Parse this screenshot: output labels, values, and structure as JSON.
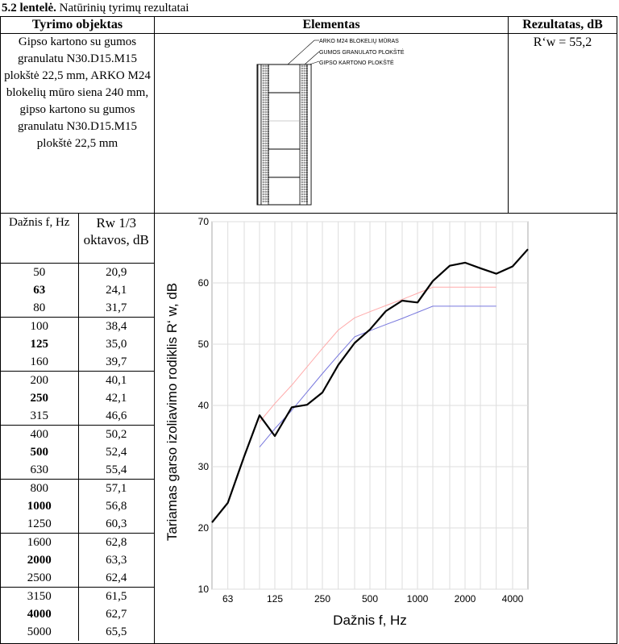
{
  "caption": {
    "bold": "5.2 lentelė.",
    "rest": " Natūrinių tyrimų rezultatai"
  },
  "headers": {
    "object": "Tyrimo objektas",
    "element": "Elementas",
    "result": "Rezultatas, dB"
  },
  "object_description": "Gipso kartono su gumos granulatu N30.D15.M15 plokštė 22,5 mm, ARKO M24 blokelių mūro siena 240 mm, gipso kartono su gumos granulatu N30.D15.M15 plokštė 22,5 mm",
  "result_value": "R‘w = 55,2",
  "diagram_labels": [
    "ARKO M24 BLOKELIŲ MŪRAS",
    "GUMOS GRANULATO PLOKŠTĖ",
    "GIPSO KARTONO PLOKŠTĖ"
  ],
  "freq_table": {
    "col_freq": "Dažnis f, Hz",
    "col_value": "Rw 1/3 oktavos, dB",
    "groups": [
      [
        {
          "f": "50",
          "v": "20,9",
          "bold": false
        },
        {
          "f": "63",
          "v": "24,1",
          "bold": true
        },
        {
          "f": "80",
          "v": "31,7",
          "bold": false
        }
      ],
      [
        {
          "f": "100",
          "v": "38,4",
          "bold": false
        },
        {
          "f": "125",
          "v": "35,0",
          "bold": true
        },
        {
          "f": "160",
          "v": "39,7",
          "bold": false
        }
      ],
      [
        {
          "f": "200",
          "v": "40,1",
          "bold": false
        },
        {
          "f": "250",
          "v": "42,1",
          "bold": true
        },
        {
          "f": "315",
          "v": "46,6",
          "bold": false
        }
      ],
      [
        {
          "f": "400",
          "v": "50,2",
          "bold": false
        },
        {
          "f": "500",
          "v": "52,4",
          "bold": true
        },
        {
          "f": "630",
          "v": "55,4",
          "bold": false
        }
      ],
      [
        {
          "f": "800",
          "v": "57,1",
          "bold": false
        },
        {
          "f": "1000",
          "v": "56,8",
          "bold": true
        },
        {
          "f": "1250",
          "v": "60,3",
          "bold": false
        }
      ],
      [
        {
          "f": "1600",
          "v": "62,8",
          "bold": false
        },
        {
          "f": "2000",
          "v": "63,3",
          "bold": true
        },
        {
          "f": "2500",
          "v": "62,4",
          "bold": false
        }
      ],
      [
        {
          "f": "3150",
          "v": "61,5",
          "bold": false
        },
        {
          "f": "4000",
          "v": "62,7",
          "bold": true
        },
        {
          "f": "5000",
          "v": "65,5",
          "bold": false
        }
      ]
    ]
  },
  "chart_data": {
    "type": "line",
    "xlabel": "Dažnis f, Hz",
    "ylabel": "Tariamas garso izoliavimo rodiklis R‘ w, dB",
    "x_scale": "log",
    "xlim": [
      50,
      5000
    ],
    "ylim": [
      10,
      70
    ],
    "xticks": [
      63,
      125,
      250,
      500,
      1000,
      2000,
      4000
    ],
    "xtick_labels": [
      "63",
      "125",
      "250",
      "500",
      "1000",
      "2000",
      "4000"
    ],
    "yticks": [
      10,
      20,
      30,
      40,
      50,
      60,
      70
    ],
    "grid": true,
    "series": [
      {
        "color": "#000000",
        "x": [
          50,
          63,
          80,
          100,
          125,
          160,
          200,
          250,
          315,
          400,
          500,
          630,
          800,
          1000,
          1250,
          1600,
          2000,
          2500,
          3150,
          4000,
          5000
        ],
        "values": [
          20.9,
          24.1,
          31.7,
          38.4,
          35.0,
          39.7,
          40.1,
          42.1,
          46.6,
          50.2,
          52.4,
          55.4,
          57.1,
          56.8,
          60.3,
          62.8,
          63.3,
          62.4,
          61.5,
          62.7,
          65.5
        ]
      },
      {
        "color": "#7777dd",
        "x": [
          100,
          125,
          160,
          200,
          250,
          315,
          400,
          500,
          630,
          800,
          1000,
          1250,
          1600,
          2000,
          2500,
          3150
        ],
        "values": [
          33.2,
          36.2,
          39.2,
          42.2,
          45.2,
          48.2,
          51.2,
          52.2,
          53.2,
          54.2,
          55.2,
          56.2,
          56.2,
          56.2,
          56.2,
          56.2
        ]
      },
      {
        "color": "#ffaaaa",
        "x": [
          100,
          125,
          160,
          200,
          250,
          315,
          400,
          500,
          630,
          800,
          1000,
          1250,
          1600,
          2000,
          2500,
          3150
        ],
        "values": [
          37.3,
          40.3,
          43.3,
          46.3,
          49.3,
          52.3,
          54.3,
          55.3,
          56.3,
          57.3,
          58.3,
          59.3,
          59.3,
          59.3,
          59.3,
          59.3
        ]
      }
    ]
  }
}
